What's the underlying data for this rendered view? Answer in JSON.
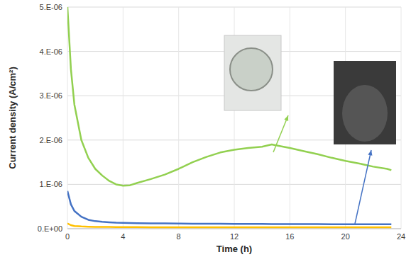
{
  "chart_data": {
    "type": "line",
    "x_label": "Time (h)",
    "y_label": "Current density (A/cm²)",
    "xlim": [
      0,
      24
    ],
    "xticks": [
      0,
      4,
      8,
      12,
      16,
      20,
      24
    ],
    "ylim": [
      0,
      5e-06
    ],
    "yticks": [
      {
        "value": 0,
        "label": "0.E+00"
      },
      {
        "value": 1e-06,
        "label": "1.E-06"
      },
      {
        "value": 2e-06,
        "label": "2.E-06"
      },
      {
        "value": 3e-06,
        "label": "3.E-06"
      },
      {
        "value": 4e-06,
        "label": "4.E-06"
      },
      {
        "value": 5e-06,
        "label": "5.E-06"
      }
    ],
    "grid": true,
    "x": [
      0,
      0.25,
      0.5,
      1,
      1.5,
      2,
      2.5,
      3,
      3.5,
      4,
      4.5,
      5,
      6,
      7,
      8,
      9,
      10,
      11,
      12,
      13,
      14,
      14.7,
      15,
      16,
      17,
      18,
      19,
      20,
      21,
      22,
      23,
      23.3
    ],
    "series": [
      {
        "color": "#92d050",
        "values": [
          5e-06,
          3.6e-06,
          2.8e-06,
          2e-06,
          1.6e-06,
          1.35e-06,
          1.2e-06,
          1.08e-06,
          1e-06,
          9.7e-07,
          9.8e-07,
          1.03e-06,
          1.12e-06,
          1.22e-06,
          1.35e-06,
          1.5e-06,
          1.62e-06,
          1.72e-06,
          1.78e-06,
          1.82e-06,
          1.85e-06,
          1.9e-06,
          1.88e-06,
          1.82e-06,
          1.75e-06,
          1.68e-06,
          1.6e-06,
          1.53e-06,
          1.47e-06,
          1.4e-06,
          1.35e-06,
          1.32e-06
        ]
      },
      {
        "color": "#4472c4",
        "values": [
          8.5e-07,
          5.5e-07,
          4e-07,
          2.7e-07,
          2e-07,
          1.7e-07,
          1.55e-07,
          1.45e-07,
          1.35e-07,
          1.3e-07,
          1.28e-07,
          1.25e-07,
          1.2e-07,
          1.18e-07,
          1.15e-07,
          1.13e-07,
          1.1e-07,
          1.1e-07,
          1.08e-07,
          1.07e-07,
          1.06e-07,
          1.05e-07,
          1.05e-07,
          1.04e-07,
          1.03e-07,
          1.02e-07,
          1.01e-07,
          1e-07,
          1e-07,
          1e-07,
          1e-07,
          1e-07
        ]
      },
      {
        "color": "#ffc000",
        "values": [
          1.2e-07,
          8e-08,
          6e-08,
          5e-08,
          4.5e-08,
          4e-08,
          4e-08,
          3.8e-08,
          3.6e-08,
          3.5e-08,
          3.5e-08,
          3.4e-08,
          3.3e-08,
          3.2e-08,
          3.2e-08,
          3.1e-08,
          3.1e-08,
          3e-08,
          3e-08,
          3e-08,
          3e-08,
          3e-08,
          3e-08,
          3e-08,
          3e-08,
          3e-08,
          3e-08,
          3e-08,
          3e-08,
          3e-08,
          3e-08,
          3e-08
        ]
      }
    ]
  }
}
